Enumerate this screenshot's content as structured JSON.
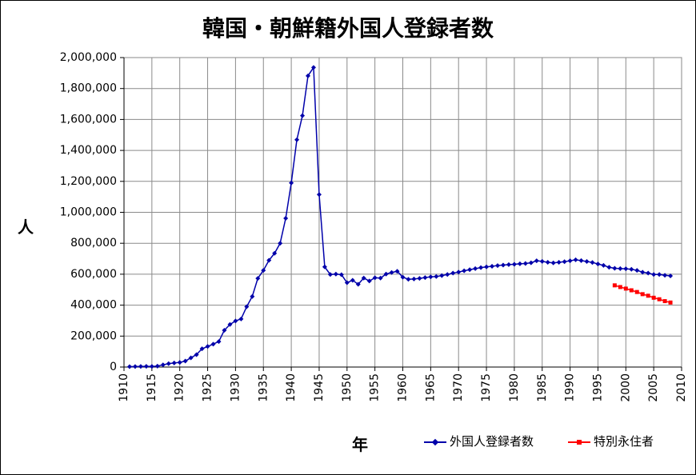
{
  "chart_data": {
    "type": "line",
    "title": "韓国・朝鮮籍外国人登録者数",
    "xlabel": "年",
    "ylabel": "人",
    "xlim": [
      1910,
      2010
    ],
    "ylim": [
      0,
      2000000
    ],
    "x_ticks": [
      "1910",
      "1915",
      "1920",
      "1925",
      "1930",
      "1935",
      "1940",
      "1945",
      "1950",
      "1955",
      "1960",
      "1965",
      "1970",
      "1975",
      "1980",
      "1985",
      "1990",
      "1995",
      "2000",
      "2005",
      "2010"
    ],
    "y_ticks": [
      "0",
      "200,000",
      "400,000",
      "600,000",
      "800,000",
      "1,000,000",
      "1,200,000",
      "1,400,000",
      "1,600,000",
      "1,800,000",
      "2,000,000"
    ],
    "grid": true,
    "legend_position": "bottom-right",
    "series": [
      {
        "name": "外国人登録者数",
        "color": "#0000aa",
        "marker": "diamond",
        "points": [
          [
            1911,
            2500
          ],
          [
            1912,
            3200
          ],
          [
            1913,
            3600
          ],
          [
            1914,
            4200
          ],
          [
            1915,
            4000
          ],
          [
            1916,
            6000
          ],
          [
            1917,
            14500
          ],
          [
            1918,
            22000
          ],
          [
            1919,
            26500
          ],
          [
            1920,
            30000
          ],
          [
            1921,
            38600
          ],
          [
            1922,
            59700
          ],
          [
            1923,
            80400
          ],
          [
            1924,
            118000
          ],
          [
            1925,
            133000
          ],
          [
            1926,
            148000
          ],
          [
            1927,
            165000
          ],
          [
            1928,
            238000
          ],
          [
            1929,
            275000
          ],
          [
            1930,
            298000
          ],
          [
            1931,
            311000
          ],
          [
            1932,
            390000
          ],
          [
            1933,
            456000
          ],
          [
            1934,
            573000
          ],
          [
            1935,
            625000
          ],
          [
            1936,
            690000
          ],
          [
            1937,
            735000
          ],
          [
            1938,
            800000
          ],
          [
            1939,
            961000
          ],
          [
            1940,
            1190000
          ],
          [
            1941,
            1469000
          ],
          [
            1942,
            1625000
          ],
          [
            1943,
            1882000
          ],
          [
            1944,
            1936000
          ],
          [
            1945,
            1115000
          ],
          [
            1946,
            647000
          ],
          [
            1947,
            598000
          ],
          [
            1948,
            601000
          ],
          [
            1949,
            597000
          ],
          [
            1950,
            545000
          ],
          [
            1951,
            561000
          ],
          [
            1952,
            535000
          ],
          [
            1953,
            575000
          ],
          [
            1954,
            556000
          ],
          [
            1955,
            577000
          ],
          [
            1956,
            575000
          ],
          [
            1957,
            601000
          ],
          [
            1958,
            611000
          ],
          [
            1959,
            619000
          ],
          [
            1960,
            581000
          ],
          [
            1961,
            567000
          ],
          [
            1962,
            569000
          ],
          [
            1963,
            573000
          ],
          [
            1964,
            578000
          ],
          [
            1965,
            583000
          ],
          [
            1966,
            585000
          ],
          [
            1967,
            591000
          ],
          [
            1968,
            598000
          ],
          [
            1969,
            607000
          ],
          [
            1970,
            614000
          ],
          [
            1971,
            622000
          ],
          [
            1972,
            629000
          ],
          [
            1973,
            636000
          ],
          [
            1974,
            643000
          ],
          [
            1975,
            647000
          ],
          [
            1976,
            651000
          ],
          [
            1977,
            656000
          ],
          [
            1978,
            659000
          ],
          [
            1979,
            662000
          ],
          [
            1980,
            664000
          ],
          [
            1981,
            667000
          ],
          [
            1982,
            669000
          ],
          [
            1983,
            674000
          ],
          [
            1984,
            687000
          ],
          [
            1985,
            683000
          ],
          [
            1986,
            677000
          ],
          [
            1987,
            673000
          ],
          [
            1988,
            677000
          ],
          [
            1989,
            681000
          ],
          [
            1990,
            687000
          ],
          [
            1991,
            693000
          ],
          [
            1992,
            688000
          ],
          [
            1993,
            682000
          ],
          [
            1994,
            676000
          ],
          [
            1995,
            666000
          ],
          [
            1996,
            657000
          ],
          [
            1997,
            645000
          ],
          [
            1998,
            638000
          ],
          [
            1999,
            636000
          ],
          [
            2000,
            635000
          ],
          [
            2001,
            632000
          ],
          [
            2002,
            625000
          ],
          [
            2003,
            613000
          ],
          [
            2004,
            607000
          ],
          [
            2005,
            598000
          ],
          [
            2006,
            598000
          ],
          [
            2007,
            593000
          ],
          [
            2008,
            589000
          ]
        ]
      },
      {
        "name": "特別永住者",
        "color": "#ff0000",
        "marker": "square",
        "points": [
          [
            1998,
            528000
          ],
          [
            1999,
            517000
          ],
          [
            2000,
            507000
          ],
          [
            2001,
            496000
          ],
          [
            2002,
            485000
          ],
          [
            2003,
            471000
          ],
          [
            2004,
            461000
          ],
          [
            2005,
            448000
          ],
          [
            2006,
            438000
          ],
          [
            2007,
            426000
          ],
          [
            2008,
            417000
          ]
        ]
      }
    ]
  }
}
